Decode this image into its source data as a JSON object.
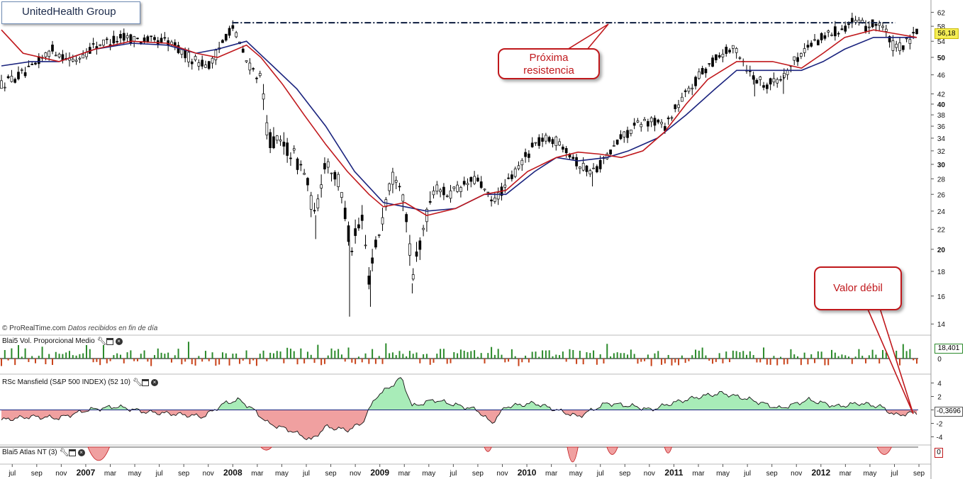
{
  "app": {
    "title": "UnitedHealth Group"
  },
  "source_note": {
    "brand": "© ProRealTime.com",
    "note": "Datos recibidos en fin de día"
  },
  "callouts": {
    "resistance": [
      "Próxima",
      "resistencia"
    ],
    "weak": "Valor débil"
  },
  "last_price": "56,18",
  "colors": {
    "ma_fast": "#c0181c",
    "ma_slow": "#1a237e",
    "resistance_line": "#1b2a4a",
    "vol_up": "#2b8a2b",
    "vol_down": "#c9431a",
    "rs_pos": "#a8ecb8",
    "rs_neg": "#f0a0a0"
  },
  "panels": {
    "volume": {
      "label": "Blai5 Vol. Proporcional Medio",
      "value": "18,401",
      "zero": "0"
    },
    "rsc": {
      "label": "RSc Mansfield (S&P 500 INDEX) (52 10)",
      "value": "-0,3696",
      "ticks": [
        "4",
        "2",
        "0",
        "-2",
        "-4"
      ]
    },
    "atlas": {
      "label": "Blai5 Atlas NT (3)",
      "value": "0"
    }
  },
  "chart_data": [
    {
      "type": "candlestick",
      "title": "UnitedHealth Group",
      "y_scale": "log",
      "ylim": [
        13.5,
        64
      ],
      "y_ticks": [
        "62",
        "58",
        "54",
        "50",
        "46",
        "42",
        "40",
        "38",
        "36",
        "34",
        "32",
        "30",
        "28",
        "26",
        "24",
        "22",
        "20",
        "18",
        "16",
        "14"
      ],
      "bold_ticks": [
        "50",
        "40",
        "30",
        "20"
      ],
      "x_labels": [
        "jul",
        "sep",
        "nov",
        "2007",
        "mar",
        "may",
        "jul",
        "sep",
        "nov",
        "2008",
        "mar",
        "may",
        "jul",
        "sep",
        "nov",
        "2009",
        "mar",
        "may",
        "jul",
        "sep",
        "nov",
        "2010",
        "mar",
        "may",
        "jul",
        "sep",
        "nov",
        "2011",
        "mar",
        "may",
        "jul",
        "sep",
        "nov",
        "2012",
        "mar",
        "may",
        "jul",
        "sep"
      ],
      "x_bold": [
        "2007",
        "2008",
        "2009",
        "2010",
        "2011",
        "2012"
      ],
      "price_path": [
        {
          "t": 0.0,
          "v": 44
        },
        {
          "t": 4.0,
          "v": 47
        },
        {
          "t": 7.0,
          "v": 52
        },
        {
          "t": 10.0,
          "v": 49
        },
        {
          "t": 13.0,
          "v": 53
        },
        {
          "t": 17.0,
          "v": 55
        },
        {
          "t": 21.0,
          "v": 54
        },
        {
          "t": 23.0,
          "v": 54
        },
        {
          "t": 26.0,
          "v": 50
        },
        {
          "t": 29.0,
          "v": 48
        },
        {
          "t": 31.0,
          "v": 55
        },
        {
          "t": 32.0,
          "v": 58
        },
        {
          "t": 34.0,
          "v": 49
        },
        {
          "t": 36.0,
          "v": 45
        },
        {
          "t": 37.0,
          "v": 34
        },
        {
          "t": 40.0,
          "v": 32
        },
        {
          "t": 42.0,
          "v": 29
        },
        {
          "t": 43.5,
          "v": 23
        },
        {
          "t": 45.0,
          "v": 31
        },
        {
          "t": 47.0,
          "v": 27
        },
        {
          "t": 48.5,
          "v": 20
        },
        {
          "t": 50.0,
          "v": 23
        },
        {
          "t": 51.0,
          "v": 17.5
        },
        {
          "t": 52.5,
          "v": 22
        },
        {
          "t": 54.0,
          "v": 28
        },
        {
          "t": 55.0,
          "v": 29
        },
        {
          "t": 56.0,
          "v": 25
        },
        {
          "t": 57.0,
          "v": 17
        },
        {
          "t": 58.5,
          "v": 22
        },
        {
          "t": 60.0,
          "v": 27
        },
        {
          "t": 62.0,
          "v": 26
        },
        {
          "t": 64.0,
          "v": 27
        },
        {
          "t": 66.0,
          "v": 28
        },
        {
          "t": 68.0,
          "v": 25
        },
        {
          "t": 70.0,
          "v": 27
        },
        {
          "t": 72.0,
          "v": 30
        },
        {
          "t": 74.0,
          "v": 33
        },
        {
          "t": 76.0,
          "v": 34
        },
        {
          "t": 78.0,
          "v": 33
        },
        {
          "t": 80.0,
          "v": 30
        },
        {
          "t": 82.0,
          "v": 29
        },
        {
          "t": 84.0,
          "v": 31
        },
        {
          "t": 86.0,
          "v": 34
        },
        {
          "t": 88.0,
          "v": 36
        },
        {
          "t": 90.0,
          "v": 37
        },
        {
          "t": 92.0,
          "v": 36
        },
        {
          "t": 94.0,
          "v": 40
        },
        {
          "t": 96.0,
          "v": 44
        },
        {
          "t": 98.0,
          "v": 48
        },
        {
          "t": 100.0,
          "v": 51
        },
        {
          "t": 102.0,
          "v": 52
        },
        {
          "t": 104.0,
          "v": 46
        },
        {
          "t": 106.0,
          "v": 44
        },
        {
          "t": 108.0,
          "v": 45
        },
        {
          "t": 110.0,
          "v": 49
        },
        {
          "t": 112.0,
          "v": 53
        },
        {
          "t": 114.0,
          "v": 55
        },
        {
          "t": 116.0,
          "v": 57
        },
        {
          "t": 118.0,
          "v": 59
        },
        {
          "t": 120.0,
          "v": 58
        },
        {
          "t": 122.0,
          "v": 59
        },
        {
          "t": 123.0,
          "v": 55
        },
        {
          "t": 124.0,
          "v": 52
        },
        {
          "t": 126.0,
          "v": 54
        },
        {
          "t": 127.0,
          "v": 56
        }
      ],
      "ma_fast": [
        {
          "t": 0.0,
          "v": 57
        },
        {
          "t": 3.0,
          "v": 51
        },
        {
          "t": 8.0,
          "v": 49
        },
        {
          "t": 13.0,
          "v": 52
        },
        {
          "t": 18.0,
          "v": 54
        },
        {
          "t": 23.0,
          "v": 53.5
        },
        {
          "t": 27.0,
          "v": 51
        },
        {
          "t": 30.0,
          "v": 50
        },
        {
          "t": 34.0,
          "v": 53
        },
        {
          "t": 36.0,
          "v": 50
        },
        {
          "t": 39.0,
          "v": 44
        },
        {
          "t": 42.0,
          "v": 38
        },
        {
          "t": 45.0,
          "v": 33
        },
        {
          "t": 48.0,
          "v": 29
        },
        {
          "t": 51.0,
          "v": 26
        },
        {
          "t": 53.0,
          "v": 24.5
        },
        {
          "t": 56.0,
          "v": 25
        },
        {
          "t": 59.0,
          "v": 23.5
        },
        {
          "t": 63.0,
          "v": 24.3
        },
        {
          "t": 67.0,
          "v": 26
        },
        {
          "t": 70.0,
          "v": 26.5
        },
        {
          "t": 73.0,
          "v": 29
        },
        {
          "t": 77.0,
          "v": 31
        },
        {
          "t": 80.0,
          "v": 31.8
        },
        {
          "t": 83.0,
          "v": 31.5
        },
        {
          "t": 86.0,
          "v": 31
        },
        {
          "t": 89.0,
          "v": 32
        },
        {
          "t": 92.0,
          "v": 35
        },
        {
          "t": 95.0,
          "v": 40
        },
        {
          "t": 98.0,
          "v": 45
        },
        {
          "t": 102.0,
          "v": 49
        },
        {
          "t": 104.0,
          "v": 49
        },
        {
          "t": 107.0,
          "v": 49
        },
        {
          "t": 111.0,
          "v": 47.5
        },
        {
          "t": 114.0,
          "v": 51
        },
        {
          "t": 117.0,
          "v": 55
        },
        {
          "t": 121.0,
          "v": 57
        },
        {
          "t": 124.0,
          "v": 56
        },
        {
          "t": 127.0,
          "v": 55
        }
      ],
      "ma_slow": [
        {
          "t": 0.0,
          "v": 48
        },
        {
          "t": 4.0,
          "v": 49
        },
        {
          "t": 8.0,
          "v": 49
        },
        {
          "t": 13.0,
          "v": 52
        },
        {
          "t": 18.0,
          "v": 53.5
        },
        {
          "t": 23.0,
          "v": 53
        },
        {
          "t": 27.0,
          "v": 51
        },
        {
          "t": 30.0,
          "v": 52
        },
        {
          "t": 34.0,
          "v": 54
        },
        {
          "t": 37.0,
          "v": 49
        },
        {
          "t": 41.0,
          "v": 43
        },
        {
          "t": 45.0,
          "v": 36
        },
        {
          "t": 49.0,
          "v": 29
        },
        {
          "t": 53.0,
          "v": 25
        },
        {
          "t": 56.0,
          "v": 24.5
        },
        {
          "t": 59.0,
          "v": 24
        },
        {
          "t": 63.0,
          "v": 24.3
        },
        {
          "t": 67.0,
          "v": 26
        },
        {
          "t": 70.0,
          "v": 26
        },
        {
          "t": 74.0,
          "v": 29
        },
        {
          "t": 77.0,
          "v": 31
        },
        {
          "t": 80.0,
          "v": 30.5
        },
        {
          "t": 84.0,
          "v": 31
        },
        {
          "t": 87.0,
          "v": 32
        },
        {
          "t": 91.0,
          "v": 34
        },
        {
          "t": 95.0,
          "v": 38
        },
        {
          "t": 99.0,
          "v": 43
        },
        {
          "t": 102.0,
          "v": 47
        },
        {
          "t": 104.0,
          "v": 47
        },
        {
          "t": 107.0,
          "v": 47
        },
        {
          "t": 111.0,
          "v": 47
        },
        {
          "t": 114.0,
          "v": 49
        },
        {
          "t": 117.0,
          "v": 52
        },
        {
          "t": 121.0,
          "v": 55
        },
        {
          "t": 124.0,
          "v": 55
        },
        {
          "t": 127.0,
          "v": 55
        }
      ],
      "resistance": {
        "v": 59,
        "from_t": 32.0,
        "to_t": 124.0
      }
    },
    {
      "type": "bar",
      "title": "Blai5 Vol. Proporcional Medio",
      "ylim": [
        -15,
        25
      ],
      "seed": 7
    },
    {
      "type": "area",
      "title": "RSc Mansfield (S&P 500 INDEX) (52 10)",
      "ylim": [
        -5,
        5
      ],
      "y_ticks": [
        "4",
        "2",
        "0",
        "-2",
        "-4"
      ],
      "path": [
        {
          "t": 0.0,
          "v": -1.5
        },
        {
          "t": 4.0,
          "v": -1.0
        },
        {
          "t": 8.0,
          "v": -1.2
        },
        {
          "t": 12.0,
          "v": 0.0
        },
        {
          "t": 16.0,
          "v": 0.5
        },
        {
          "t": 20.0,
          "v": -0.3
        },
        {
          "t": 24.0,
          "v": -0.6
        },
        {
          "t": 28.0,
          "v": -1.0
        },
        {
          "t": 31.0,
          "v": 1.0
        },
        {
          "t": 33.0,
          "v": 1.5
        },
        {
          "t": 35.0,
          "v": 0.0
        },
        {
          "t": 37.0,
          "v": -2.0
        },
        {
          "t": 40.0,
          "v": -3.0
        },
        {
          "t": 43.0,
          "v": -4.5
        },
        {
          "t": 45.0,
          "v": -2.5
        },
        {
          "t": 48.0,
          "v": -3.0
        },
        {
          "t": 50.0,
          "v": -2.0
        },
        {
          "t": 52.0,
          "v": 2.0
        },
        {
          "t": 54.0,
          "v": 3.5
        },
        {
          "t": 55.5,
          "v": 4.8
        },
        {
          "t": 57.0,
          "v": 0.5
        },
        {
          "t": 60.0,
          "v": 1.5
        },
        {
          "t": 62.0,
          "v": 1.0
        },
        {
          "t": 64.0,
          "v": 0.5
        },
        {
          "t": 66.0,
          "v": 0.0
        },
        {
          "t": 68.0,
          "v": -2.0
        },
        {
          "t": 70.0,
          "v": 0.5
        },
        {
          "t": 74.0,
          "v": 1.0
        },
        {
          "t": 77.0,
          "v": 0.0
        },
        {
          "t": 80.0,
          "v": -1.0
        },
        {
          "t": 84.0,
          "v": 1.0
        },
        {
          "t": 88.0,
          "v": 0.5
        },
        {
          "t": 90.0,
          "v": 0.0
        },
        {
          "t": 93.0,
          "v": 1.0
        },
        {
          "t": 97.0,
          "v": 2.0
        },
        {
          "t": 100.0,
          "v": 2.5
        },
        {
          "t": 104.0,
          "v": 1.5
        },
        {
          "t": 108.0,
          "v": 0.2
        },
        {
          "t": 112.0,
          "v": 1.5
        },
        {
          "t": 116.0,
          "v": 0.5
        },
        {
          "t": 119.0,
          "v": 1.0
        },
        {
          "t": 122.0,
          "v": 0.5
        },
        {
          "t": 124.0,
          "v": -0.8
        },
        {
          "t": 127.0,
          "v": -0.37
        }
      ]
    },
    {
      "type": "area",
      "title": "Blai5 Atlas NT (3)",
      "ylim": [
        -1,
        0
      ],
      "events": [
        {
          "from": 12.0,
          "to": 15.0,
          "depth": 0.9
        },
        {
          "from": 36.0,
          "to": 37.5,
          "depth": 0.2
        },
        {
          "from": 67.0,
          "to": 68.0,
          "depth": 0.3
        },
        {
          "from": 78.5,
          "to": 80.0,
          "depth": 1.0
        },
        {
          "from": 84.0,
          "to": 85.5,
          "depth": 0.5
        },
        {
          "from": 92.0,
          "to": 93.0,
          "depth": 0.4
        },
        {
          "from": 121.5,
          "to": 123.5,
          "depth": 0.5
        }
      ]
    }
  ]
}
